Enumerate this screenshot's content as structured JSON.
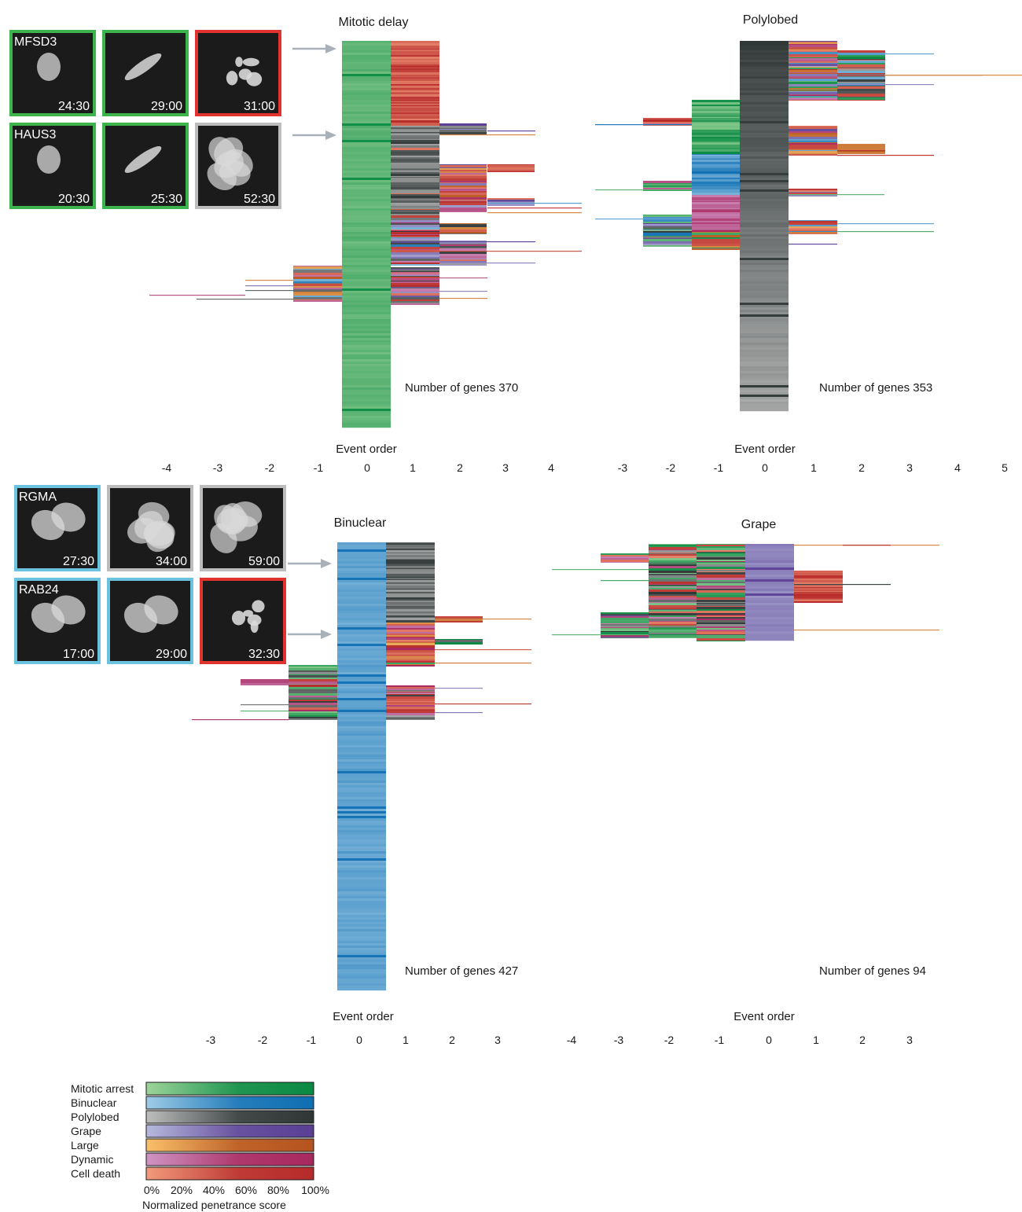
{
  "colors": {
    "mitotic": [
      "#9dd49a",
      "#0a8a44"
    ],
    "binuclear": [
      "#9fcbe6",
      "#0f6fb3"
    ],
    "polylobed": [
      "#bdbdbd",
      "#2f3636"
    ],
    "grape": [
      "#b6b9dc",
      "#5a3f94"
    ],
    "large": [
      "#f9c06a",
      "#b5531f"
    ],
    "dynamic": [
      "#cf94c4",
      "#a8285e"
    ],
    "death": [
      "#f29a7c",
      "#b62a2a"
    ]
  },
  "panels": [
    {
      "id": "mitotic_delay",
      "title": "Mitotic delay",
      "genes_label": "Number of genes 370",
      "axis_title": "Event order",
      "ticks": [
        "-4",
        "-3",
        "-2",
        "-1",
        "0",
        "1",
        "2",
        "3",
        "4"
      ],
      "dominant": "mitotic"
    },
    {
      "id": "polylobed",
      "title": "Polylobed",
      "genes_label": "Number of genes 353",
      "axis_title": "Event order",
      "ticks": [
        "-3",
        "-2",
        "-1",
        "0",
        "1",
        "2",
        "3",
        "4",
        "5"
      ],
      "dominant": "polylobed"
    },
    {
      "id": "binuclear",
      "title": "Binuclear",
      "genes_label": "Number of genes 427",
      "axis_title": "Event order",
      "ticks": [
        "-3",
        "-2",
        "-1",
        "0",
        "1",
        "2",
        "3"
      ],
      "dominant": "binuclear"
    },
    {
      "id": "grape",
      "title": "Grape",
      "genes_label": "Number of genes 94",
      "axis_title": "Event order",
      "ticks": [
        "-4",
        "-3",
        "-2",
        "-1",
        "0",
        "1",
        "2",
        "3"
      ],
      "dominant": "grape"
    }
  ],
  "cell_images": [
    {
      "gene": "MFSD3",
      "times": [
        "24:30",
        "29:00",
        "31:00"
      ],
      "frames": [
        "mitotic",
        "mitotic",
        "death"
      ]
    },
    {
      "gene": "HAUS3",
      "times": [
        "20:30",
        "25:30",
        "52:30"
      ],
      "frames": [
        "mitotic",
        "mitotic",
        "polylobed"
      ]
    },
    {
      "gene": "RGMA",
      "times": [
        "27:30",
        "34:00",
        "59:00"
      ],
      "frames": [
        "binuclear",
        "polylobed",
        "polylobed"
      ]
    },
    {
      "gene": "RAB24",
      "times": [
        "17:00",
        "29:00",
        "32:30"
      ],
      "frames": [
        "binuclear",
        "binuclear",
        "death"
      ]
    }
  ],
  "legend": {
    "items": [
      {
        "label": "Mitotic arrest",
        "key": "mitotic"
      },
      {
        "label": "Binuclear",
        "key": "binuclear"
      },
      {
        "label": "Polylobed",
        "key": "polylobed"
      },
      {
        "label": "Grape",
        "key": "grape"
      },
      {
        "label": "Large",
        "key": "large"
      },
      {
        "label": "Dynamic",
        "key": "dynamic"
      },
      {
        "label": "Cell death",
        "key": "death"
      }
    ],
    "ticks": [
      "0%",
      "20%",
      "40%",
      "60%",
      "80%",
      "100%"
    ],
    "title": "Normalized penetrance score"
  },
  "chart_data": [
    {
      "type": "heatmap",
      "title": "Mitotic delay",
      "xlabel": "Event order",
      "x": [
        -4,
        -3,
        -2,
        -1,
        0,
        1,
        2,
        3,
        4
      ],
      "n_genes": 370,
      "dominant_phenotype": "Mitotic arrest"
    },
    {
      "type": "heatmap",
      "title": "Polylobed",
      "xlabel": "Event order",
      "x": [
        -3,
        -2,
        -1,
        0,
        1,
        2,
        3,
        4,
        5
      ],
      "n_genes": 353,
      "dominant_phenotype": "Polylobed"
    },
    {
      "type": "heatmap",
      "title": "Binuclear",
      "xlabel": "Event order",
      "x": [
        -3,
        -2,
        -1,
        0,
        1,
        2,
        3
      ],
      "n_genes": 427,
      "dominant_phenotype": "Binuclear"
    },
    {
      "type": "heatmap",
      "title": "Grape",
      "xlabel": "Event order",
      "x": [
        -4,
        -3,
        -2,
        -1,
        0,
        1,
        2,
        3
      ],
      "n_genes": 94,
      "dominant_phenotype": "Grape"
    }
  ]
}
